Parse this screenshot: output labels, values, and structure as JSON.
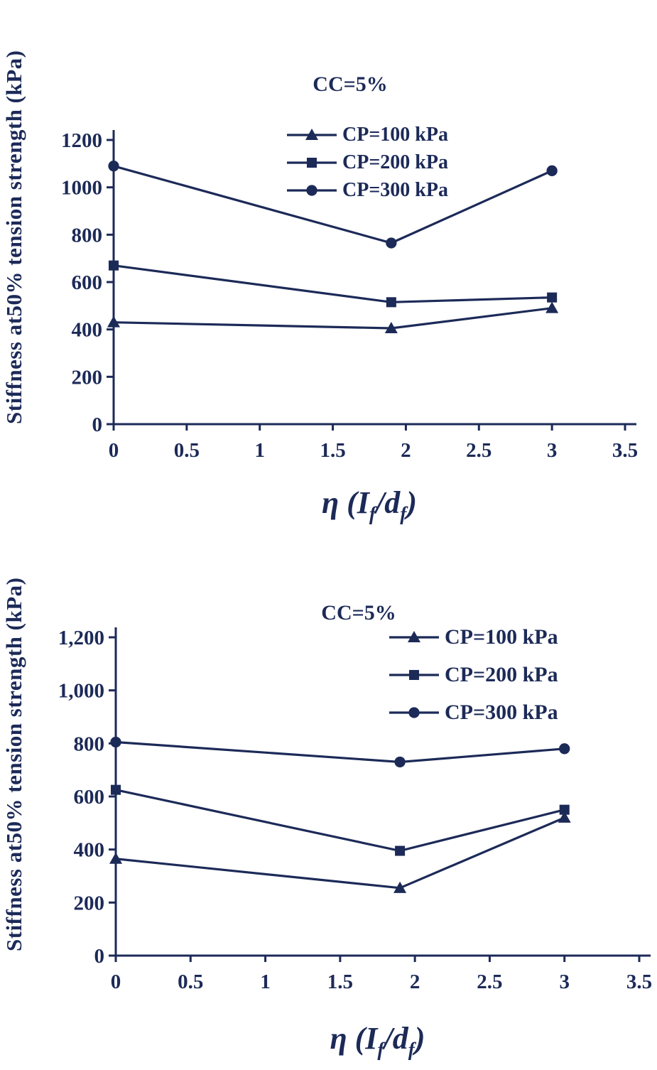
{
  "figure": {
    "background": "#ffffff",
    "ink": "#1c2a58"
  },
  "chart_data": [
    {
      "type": "line",
      "title": "CC=5%",
      "ylabel": "Stiffness at50% tension strength (kPa)",
      "xlabel": "η (If/df)",
      "xlabel_parts": {
        "p1": "η (I",
        "s1": "f",
        "p2": "/d",
        "s2": "f",
        "p3": ")"
      },
      "color": "#1c2a58",
      "grid": false,
      "legend_position": "upper-center-inside",
      "xlim": [
        0,
        3.5
      ],
      "ylim": [
        0,
        1200
      ],
      "xticks": [
        "0",
        "0.5",
        "1",
        "1.5",
        "2",
        "2.5",
        "3",
        "3.5"
      ],
      "yticks": [
        "0",
        "200",
        "400",
        "600",
        "800",
        "1000",
        "1200"
      ],
      "x": [
        0,
        1.9,
        3
      ],
      "series": [
        {
          "name": "CP=100 kPa",
          "marker": "triangle",
          "values": [
            430,
            405,
            490
          ]
        },
        {
          "name": "CP=200 kPa",
          "marker": "square",
          "values": [
            670,
            515,
            535
          ]
        },
        {
          "name": "CP=300 kPa",
          "marker": "circle",
          "values": [
            1090,
            765,
            1070
          ]
        }
      ]
    },
    {
      "type": "line",
      "title": "CC=5%",
      "ylabel": "Stiffness at50% tension strength (kPa)",
      "xlabel": "η (If/df)",
      "xlabel_parts": {
        "p1": "η (I",
        "s1": "f",
        "p2": "/d",
        "s2": "f",
        "p3": ")"
      },
      "color": "#1c2a58",
      "grid": false,
      "legend_position": "upper-right-inside",
      "xlim": [
        0,
        3.5
      ],
      "ylim": [
        0,
        1200
      ],
      "xticks": [
        "0",
        "0.5",
        "1",
        "1.5",
        "2",
        "2.5",
        "3",
        "3.5"
      ],
      "yticks": [
        "0",
        "200",
        "400",
        "600",
        "800",
        "1,000",
        "1,200"
      ],
      "x": [
        0,
        1.9,
        3
      ],
      "series": [
        {
          "name": "CP=100 kPa",
          "marker": "triangle",
          "values": [
            365,
            255,
            520
          ]
        },
        {
          "name": "CP=200 kPa",
          "marker": "square",
          "values": [
            625,
            395,
            550
          ]
        },
        {
          "name": "CP=300 kPa",
          "marker": "circle",
          "values": [
            805,
            730,
            780
          ]
        }
      ]
    }
  ]
}
